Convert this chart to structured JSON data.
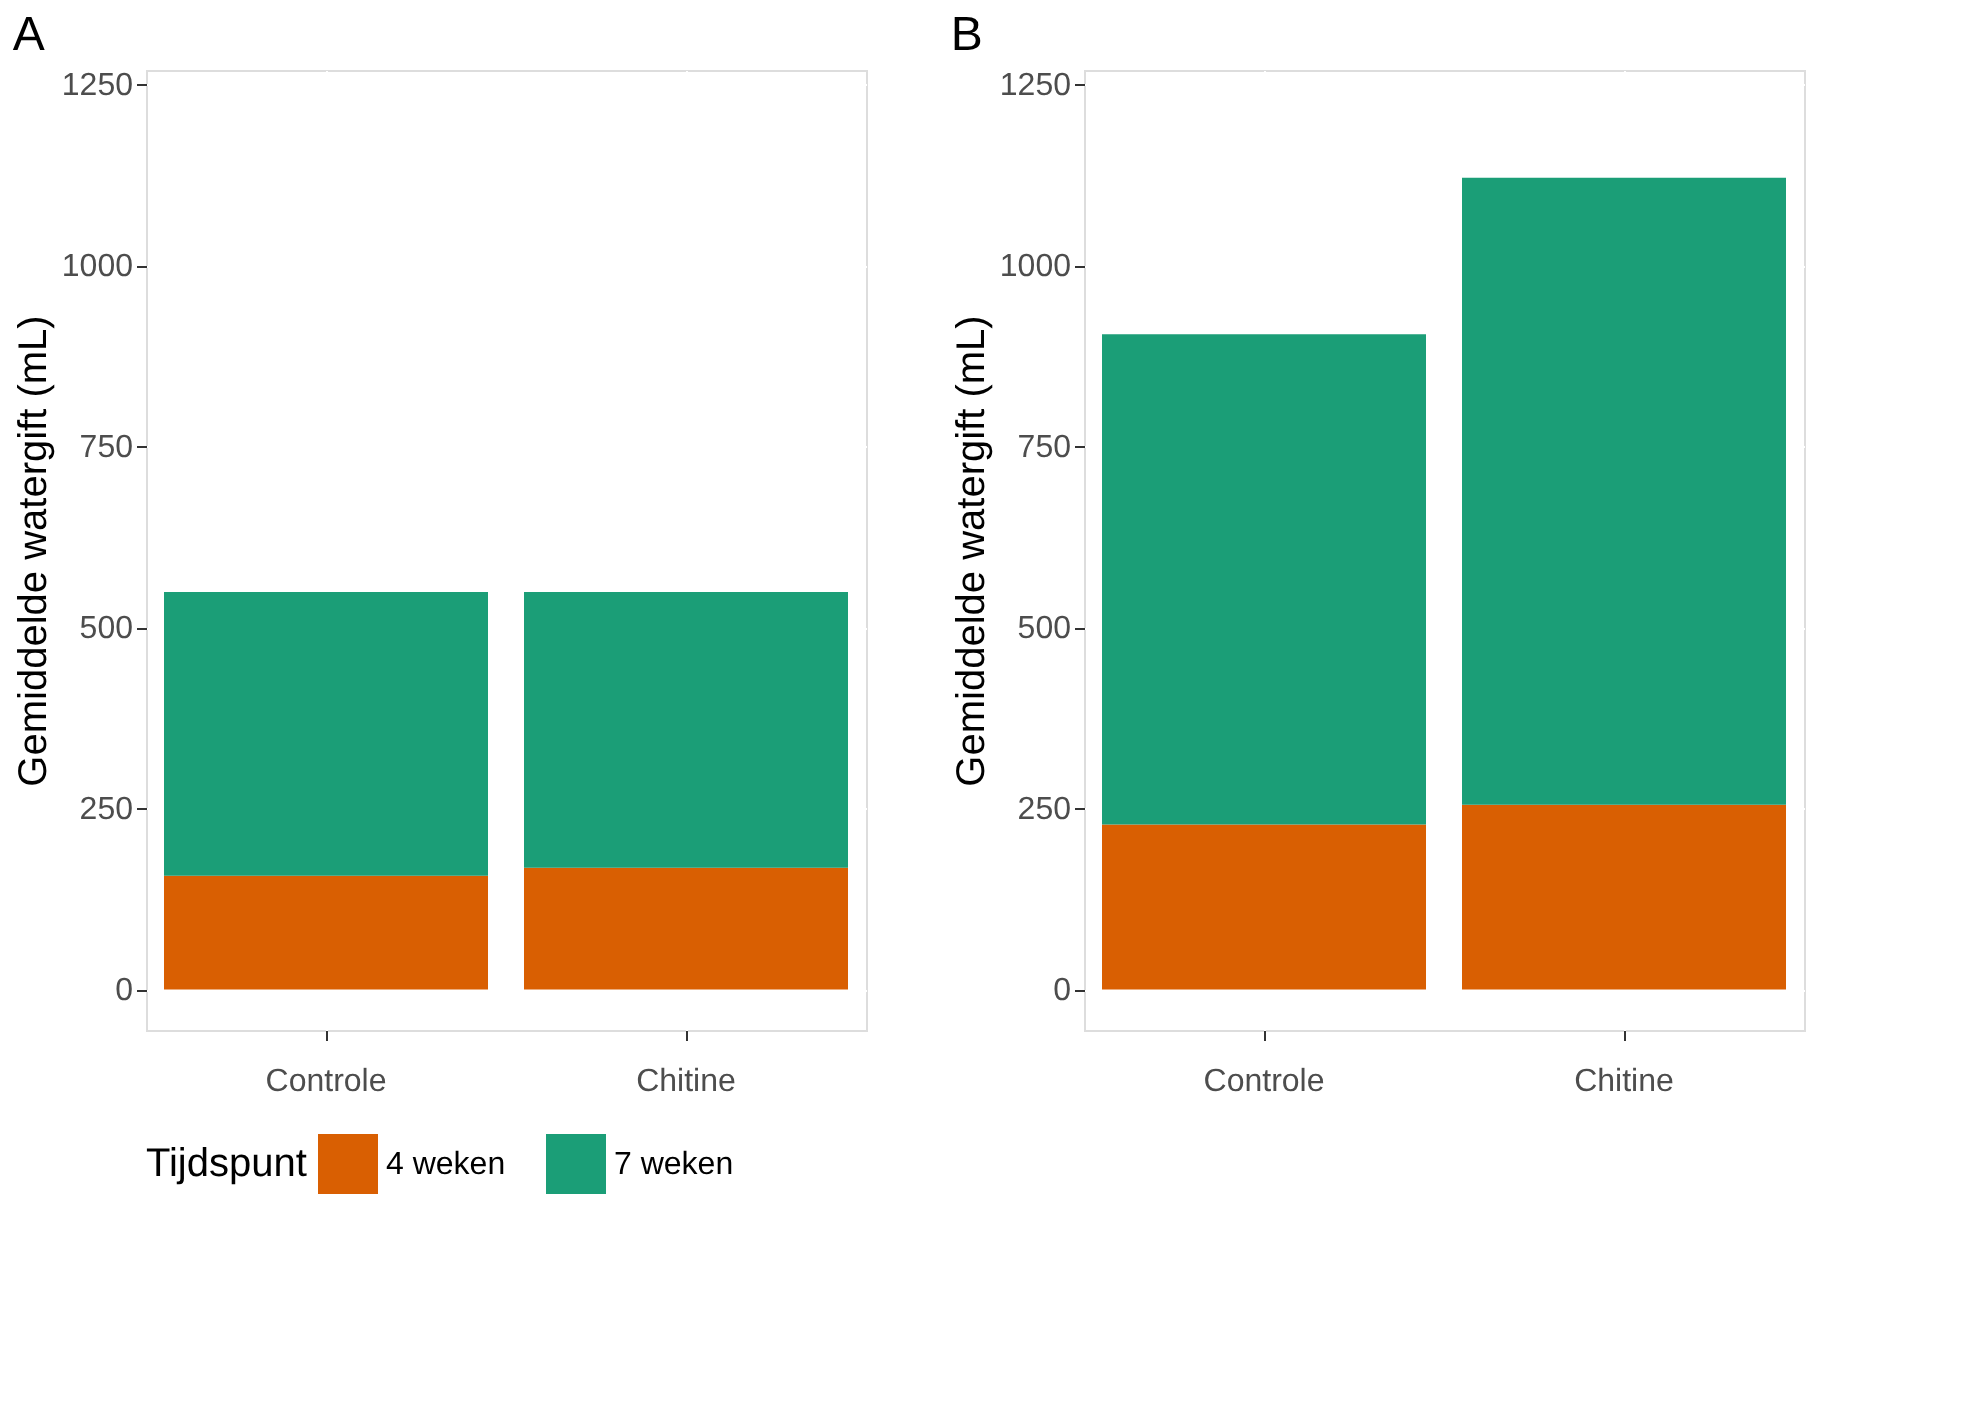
{
  "chart_data": [
    {
      "type": "bar",
      "title": "A",
      "ylabel": "Gemiddelde watergift (mL)",
      "categories": [
        "Controle",
        "Chitine"
      ],
      "stacked": true,
      "ylim": [
        -56,
        1270
      ],
      "yticks": [
        0,
        250,
        500,
        750,
        1000,
        1250
      ],
      "grid": true,
      "legend": "bottom",
      "legend_title": "Tijdspunt",
      "series": [
        {
          "name": "4 weken",
          "color": "#d95f02",
          "values": [
            157,
            168
          ]
        },
        {
          "name": "7 weken",
          "color": "#1b9e77",
          "values": [
            392,
            381
          ]
        }
      ]
    },
    {
      "type": "bar",
      "title": "B",
      "ylabel": "Gemiddelde watergift (mL)",
      "categories": [
        "Controle",
        "Chitine"
      ],
      "stacked": true,
      "ylim": [
        -56,
        1270
      ],
      "yticks": [
        0,
        250,
        500,
        750,
        1000,
        1250
      ],
      "grid": true,
      "series": [
        {
          "name": "4 weken",
          "color": "#d95f02",
          "values": [
            228,
            255
          ]
        },
        {
          "name": "7 weken",
          "color": "#1b9e77",
          "values": [
            677,
            866
          ]
        }
      ]
    }
  ]
}
